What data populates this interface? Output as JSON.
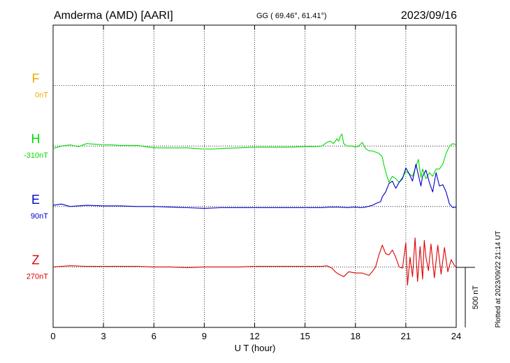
{
  "header": {
    "station": "Amderma (AMD)  [AARI]",
    "coords": "GG ( 69.46°,  61.41°)",
    "date": "2023/09/16"
  },
  "footer": {
    "plotted": "Plotted at 2023/09/22 21:14 UT",
    "scale_label": "500 nT"
  },
  "chart_data": {
    "type": "line",
    "xlabel": "U T (hour)",
    "xlim": [
      0,
      24
    ],
    "xticks": [
      "0",
      "3",
      "6",
      "9",
      "12",
      "15",
      "18",
      "21",
      "24"
    ],
    "grid": true,
    "scale_bar_nT": 500,
    "ylim_nT": [
      -1250,
      1250
    ],
    "baseline_offsets_nT": [
      750,
      250,
      -250,
      -750
    ],
    "series": [
      {
        "name": "F",
        "baseline_label": "0nT",
        "color": "#f2a900",
        "x": [],
        "y": []
      },
      {
        "name": "H",
        "baseline_label": "-310nT",
        "color": "#00dd00",
        "x": [
          0,
          0.5,
          1,
          1.5,
          2,
          2.5,
          3,
          3.5,
          4,
          5,
          6,
          7,
          8,
          8.5,
          9,
          9.5,
          10,
          11,
          12,
          13,
          14,
          15,
          15.5,
          16,
          16.3,
          16.5,
          16.7,
          16.9,
          17.0,
          17.1,
          17.2,
          17.3,
          17.5,
          17.8,
          18.0,
          18.2,
          18.4,
          18.6,
          18.8,
          19.0,
          19.2,
          19.4,
          19.6,
          19.7,
          19.8,
          19.9,
          20.0,
          20.2,
          20.4,
          20.6,
          20.8,
          21.0,
          21.2,
          21.4,
          21.6,
          21.75,
          21.9,
          22.0,
          22.2,
          22.4,
          22.6,
          22.8,
          23.0,
          23.2,
          23.4,
          23.6,
          23.8,
          24.0
        ],
        "y": [
          -20,
          0,
          10,
          -5,
          20,
          15,
          10,
          10,
          5,
          5,
          -15,
          -15,
          -15,
          -20,
          -25,
          -25,
          -20,
          -15,
          -10,
          -10,
          -10,
          -5,
          -5,
          0,
          30,
          40,
          20,
          60,
          40,
          80,
          100,
          20,
          0,
          0,
          -10,
          0,
          30,
          -20,
          -40,
          -40,
          -50,
          -60,
          -90,
          -160,
          -210,
          -260,
          -300,
          -250,
          -270,
          -300,
          -260,
          -210,
          -230,
          -250,
          -170,
          -110,
          -260,
          -190,
          -270,
          -220,
          -250,
          -190,
          -190,
          -150,
          -60,
          0,
          20,
          10
        ]
      },
      {
        "name": "E",
        "baseline_label": "90nT",
        "color": "#0000cc",
        "x": [
          0,
          0.5,
          1,
          2,
          3,
          4,
          5,
          6,
          7,
          8,
          9,
          10,
          11,
          12,
          13,
          14,
          15,
          16,
          16.5,
          17,
          17.5,
          18,
          18.3,
          18.6,
          19.0,
          19.3,
          19.5,
          19.6,
          19.8,
          20.0,
          20.2,
          20.4,
          20.6,
          20.8,
          21.0,
          21.2,
          21.4,
          21.6,
          21.75,
          21.9,
          22.0,
          22.2,
          22.4,
          22.6,
          22.8,
          23.0,
          23.2,
          23.4,
          23.6,
          23.8,
          24.0
        ],
        "y": [
          10,
          20,
          0,
          10,
          5,
          5,
          0,
          0,
          -5,
          -10,
          -15,
          -10,
          -10,
          -10,
          -10,
          -10,
          -10,
          -10,
          -5,
          -5,
          -10,
          -5,
          -10,
          -5,
          10,
          30,
          40,
          80,
          120,
          190,
          210,
          150,
          200,
          230,
          320,
          270,
          210,
          350,
          260,
          170,
          250,
          300,
          200,
          120,
          280,
          170,
          180,
          120,
          20,
          -10,
          -5
        ]
      },
      {
        "name": "Z",
        "baseline_label": "270nT",
        "color": "#dd0000",
        "x": [
          0,
          0.5,
          1,
          2,
          3,
          4,
          5,
          6,
          7,
          8,
          9,
          10,
          11,
          12,
          13,
          14,
          15,
          16,
          16.3,
          16.6,
          16.8,
          17.0,
          17.3,
          17.6,
          18.0,
          18.4,
          18.8,
          19.0,
          19.2,
          19.4,
          19.6,
          19.8,
          20.0,
          20.2,
          20.4,
          20.6,
          20.8,
          21.0,
          21.1,
          21.25,
          21.4,
          21.55,
          21.7,
          21.85,
          22.0,
          22.1,
          22.2,
          22.35,
          22.5,
          22.7,
          22.9,
          23.1,
          23.3,
          23.5,
          23.7,
          23.9,
          24.0
        ],
        "y": [
          0,
          5,
          10,
          5,
          5,
          5,
          5,
          0,
          0,
          -5,
          0,
          0,
          0,
          5,
          5,
          5,
          5,
          5,
          10,
          -10,
          -40,
          -60,
          -80,
          -40,
          -50,
          -50,
          -70,
          -40,
          0,
          100,
          180,
          110,
          100,
          140,
          80,
          0,
          -10,
          200,
          -150,
          80,
          -80,
          240,
          -120,
          170,
          -100,
          220,
          80,
          -30,
          190,
          -90,
          180,
          -60,
          160,
          -40,
          60,
          10,
          0
        ]
      }
    ]
  }
}
